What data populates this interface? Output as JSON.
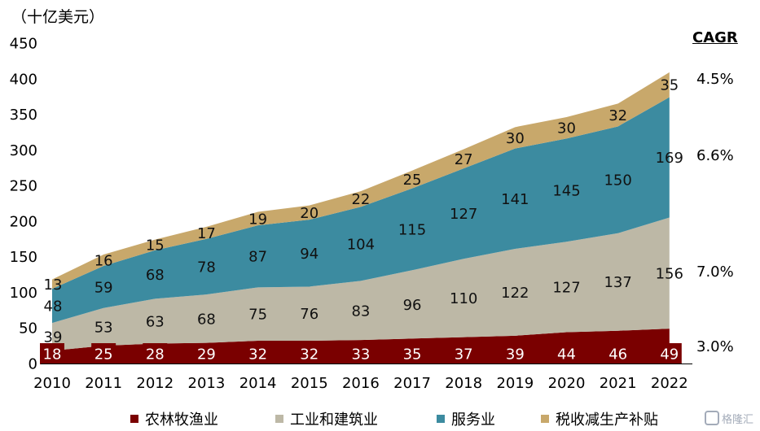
{
  "unit_label": "（十亿美元）",
  "cagr": {
    "title": "CAGR",
    "values": [
      "4.5%",
      "6.6%",
      "7.0%",
      "3.0%"
    ]
  },
  "legend": [
    {
      "label": "农林牧渔业",
      "color": "#7a0000"
    },
    {
      "label": "工业和建筑业",
      "color": "#bdb8a6"
    },
    {
      "label": "服务业",
      "color": "#3c8ba0"
    },
    {
      "label": "税收减生产补贴",
      "color": "#c8a86b"
    }
  ],
  "watermark": "格隆汇",
  "chart_data": {
    "type": "area",
    "stacked": true,
    "x": [
      "2010",
      "2011",
      "2012",
      "2013",
      "2014",
      "2015",
      "2016",
      "2017",
      "2018",
      "2019",
      "2020",
      "2021",
      "2022"
    ],
    "series": [
      {
        "name": "农林牧渔业",
        "color": "#7a0000",
        "values": [
          18,
          25,
          28,
          29,
          32,
          32,
          33,
          35,
          37,
          39,
          44,
          46,
          49
        ]
      },
      {
        "name": "工业和建筑业",
        "color": "#bdb8a6",
        "values": [
          39,
          53,
          63,
          68,
          75,
          76,
          83,
          96,
          110,
          122,
          127,
          137,
          156
        ]
      },
      {
        "name": "服务业",
        "color": "#3c8ba0",
        "values": [
          48,
          59,
          68,
          78,
          87,
          94,
          104,
          115,
          127,
          141,
          145,
          150,
          169
        ]
      },
      {
        "name": "税收减生产补贴",
        "color": "#c8a86b",
        "values": [
          13,
          16,
          15,
          17,
          19,
          20,
          22,
          25,
          27,
          30,
          30,
          32,
          35
        ]
      }
    ],
    "ylim": [
      0,
      450
    ],
    "yticks": [
      0,
      50,
      100,
      150,
      200,
      250,
      300,
      350,
      400,
      450
    ],
    "ylabel": "（十亿美元）",
    "xlabel": "",
    "grid": false,
    "legend_position": "bottom"
  }
}
